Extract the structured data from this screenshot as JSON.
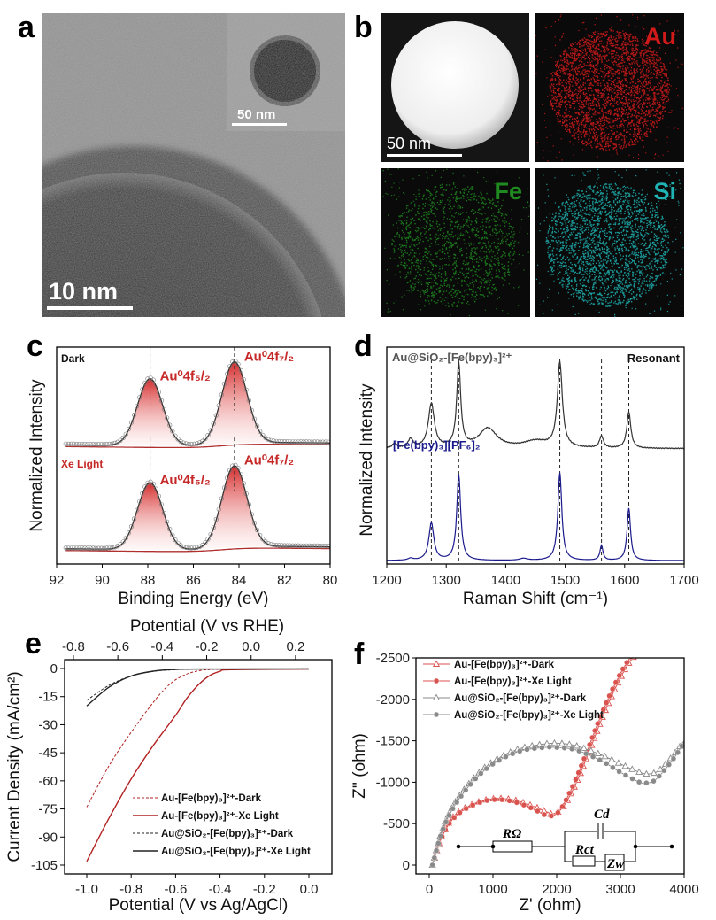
{
  "panels": {
    "a": {
      "label": "a",
      "scale_bar": "10 nm",
      "inset_scale_bar": "50 nm"
    },
    "b": {
      "label": "b",
      "scale_bar": "50 nm",
      "maps": [
        "Au",
        "Fe",
        "Si"
      ],
      "map_colors": [
        "#d21a1a",
        "#1f8a1f",
        "#1fb3b3"
      ]
    }
  },
  "chart_data": [
    {
      "panel": "c",
      "type": "line",
      "title": "",
      "xlabel": "Binding Energy (eV)",
      "ylabel": "Normalized Intensity",
      "xlim": [
        92,
        80
      ],
      "xticks": [
        "92",
        "90",
        "88",
        "86",
        "84",
        "82",
        "80"
      ],
      "series": [
        {
          "name": "Dark",
          "offset": 1.15,
          "peaks": [
            {
              "label": "Au⁰4f₇/₂",
              "center": 84.2,
              "height": 0.9
            },
            {
              "label": "Au⁰4f₅/₂",
              "center": 87.9,
              "height": 0.74
            }
          ]
        },
        {
          "name": "Xe Light",
          "offset": 0.0,
          "peaks": [
            {
              "label": "Au⁰4f₇/₂",
              "center": 84.2,
              "height": 0.9
            },
            {
              "label": "Au⁰4f₅/₂",
              "center": 87.9,
              "height": 0.74
            }
          ]
        }
      ],
      "colors": {
        "dark_label": "#111111",
        "light_label": "#c62828",
        "peak": "#c62828"
      }
    },
    {
      "panel": "d",
      "type": "line",
      "xlabel": "Raman Shift (cm⁻¹)",
      "ylabel": "Normalized Intensity",
      "xlim": [
        1200,
        1700
      ],
      "xticks": [
        "1200",
        "1300",
        "1400",
        "1500",
        "1600",
        "1700"
      ],
      "annotation": "Resonant",
      "marked_peaks": [
        1275,
        1321,
        1491,
        1561,
        1607
      ],
      "series": [
        {
          "name": "Au@SiO₂-[Fe(bpy)₃]²⁺",
          "color": "#333333",
          "offset": 1.17,
          "peaks": [
            [
              1213,
              0.05,
              4
            ],
            [
              1240,
              0.09,
              5
            ],
            [
              1275,
              0.45,
              6
            ],
            [
              1321,
              0.85,
              4
            ],
            [
              1370,
              0.2,
              18
            ],
            [
              1450,
              0.07,
              25
            ],
            [
              1491,
              0.86,
              5
            ],
            [
              1561,
              0.12,
              4
            ],
            [
              1607,
              0.37,
              4
            ]
          ]
        },
        {
          "name": "[Fe(bpy)₃][PF₆]₂",
          "color": "#1a1a8c",
          "offset": 0.035,
          "peaks": [
            [
              1240,
              0.02,
              5
            ],
            [
              1275,
              0.38,
              5
            ],
            [
              1321,
              0.87,
              4
            ],
            [
              1430,
              0.02,
              8
            ],
            [
              1491,
              0.89,
              4
            ],
            [
              1561,
              0.15,
              3
            ],
            [
              1607,
              0.53,
              3.5
            ]
          ]
        }
      ]
    },
    {
      "panel": "e",
      "type": "line",
      "xlabel": "Potential (V vs Ag/AgCl)",
      "x2label": "Potential (V vs RHE)",
      "ylabel": "Current Density (mA/cm²)",
      "xlim": [
        -1.1,
        0.1
      ],
      "ylim": [
        -110,
        5
      ],
      "xticks": [
        "-1.0",
        "-0.8",
        "-0.6",
        "-0.4",
        "-0.2",
        "0.0"
      ],
      "x2ticks": [
        "-0.8",
        "-0.6",
        "-0.4",
        "-0.2",
        "0.0",
        "0.2"
      ],
      "yticks": [
        "0",
        "-15",
        "-30",
        "-45",
        "-60",
        "-75",
        "-90",
        "-105"
      ],
      "series": [
        {
          "name": "Au-[Fe(bpy)₃]²⁺-Dark",
          "color": "#b22222",
          "dash": true,
          "x": [
            -1.0,
            -0.9,
            -0.8,
            -0.7,
            -0.65,
            -0.6,
            -0.55,
            -0.5,
            -0.45,
            -0.4,
            0
          ],
          "y": [
            -74,
            -52,
            -34,
            -18,
            -11,
            -6,
            -3,
            -1.3,
            -0.6,
            -0.4,
            -0.3
          ]
        },
        {
          "name": "Au-[Fe(bpy)₃]²⁺-Xe Light",
          "color": "#b22222",
          "dash": false,
          "x": [
            -1.0,
            -0.9,
            -0.8,
            -0.7,
            -0.6,
            -0.55,
            -0.5,
            -0.45,
            -0.4,
            -0.35,
            0
          ],
          "y": [
            -103,
            -80,
            -59,
            -41,
            -25,
            -16,
            -9,
            -4,
            -1.5,
            -0.6,
            -0.3
          ]
        },
        {
          "name": "Au@SiO₂-[Fe(bpy)₃]²⁺-Dark",
          "color": "#222222",
          "dash": true,
          "x": [
            -1.0,
            -0.9,
            -0.8,
            -0.7,
            -0.6,
            -0.5,
            0
          ],
          "y": [
            -17,
            -9,
            -4,
            -1.5,
            -0.6,
            -0.3,
            -0.2
          ]
        },
        {
          "name": "Au@SiO₂-[Fe(bpy)₃]²⁺-Xe Light",
          "color": "#222222",
          "dash": false,
          "x": [
            -1.0,
            -0.9,
            -0.8,
            -0.7,
            -0.6,
            -0.5,
            0
          ],
          "y": [
            -20,
            -10,
            -4,
            -1.4,
            -0.5,
            -0.3,
            -0.2
          ]
        }
      ]
    },
    {
      "panel": "f",
      "type": "scatter",
      "xlabel": "Z' (ohm)",
      "ylabel": "Z'' (ohm)",
      "xlim": [
        -150,
        4000
      ],
      "ylim": [
        100,
        -2500
      ],
      "xticks": [
        "0",
        "1000",
        "2000",
        "3000",
        "4000"
      ],
      "yticks": [
        "-2500",
        "-2000",
        "-1500",
        "-1000",
        "-500",
        "0"
      ],
      "circuit": {
        "r_ohm": "RΩ",
        "r_ct": "Rct",
        "c_d": "Cd",
        "z_w": "Zw"
      },
      "series": [
        {
          "name": "Au-[Fe(bpy)₃]²⁺-Dark",
          "color": "#d9534f",
          "marker": "triangle",
          "x": [
            50,
            200,
            400,
            700,
            1000,
            1300,
            1600,
            1850,
            1950,
            2100,
            2300,
            2500,
            2700,
            2900,
            3100,
            3250
          ],
          "y": [
            0,
            -350,
            -600,
            -740,
            -800,
            -790,
            -720,
            -640,
            -620,
            -700,
            -980,
            -1350,
            -1750,
            -2100,
            -2400,
            -2550
          ]
        },
        {
          "name": "Au-[Fe(bpy)₃]²⁺-Xe Light",
          "color": "#d9534f",
          "marker": "circle",
          "x": [
            50,
            200,
            400,
            700,
            1000,
            1300,
            1600,
            1800,
            1900,
            2050,
            2250,
            2450,
            2650,
            2850,
            3050,
            3200
          ],
          "y": [
            0,
            -340,
            -580,
            -730,
            -790,
            -770,
            -690,
            -610,
            -590,
            -660,
            -950,
            -1320,
            -1720,
            -2080,
            -2380,
            -2550
          ]
        },
        {
          "name": "Au@SiO₂-[Fe(bpy)₃]²⁺-Dark",
          "color": "#8a8a8a",
          "marker": "triangle",
          "x": [
            50,
            200,
            400,
            700,
            1000,
            1400,
            1800,
            2000,
            2300,
            2700,
            3000,
            3300,
            3450,
            3600,
            3800,
            4000
          ],
          "y": [
            0,
            -420,
            -750,
            -1050,
            -1250,
            -1400,
            -1460,
            -1470,
            -1440,
            -1330,
            -1220,
            -1120,
            -1100,
            -1140,
            -1300,
            -1500
          ]
        },
        {
          "name": "Au@SiO₂-[Fe(bpy)₃]²⁺-Xe Light",
          "color": "#8a8a8a",
          "marker": "circle",
          "x": [
            50,
            200,
            400,
            700,
            1000,
            1400,
            1800,
            2000,
            2300,
            2700,
            3000,
            3300,
            3400,
            3550,
            3800,
            4000
          ],
          "y": [
            0,
            -400,
            -720,
            -1020,
            -1220,
            -1370,
            -1420,
            -1420,
            -1390,
            -1260,
            -1120,
            -1000,
            -990,
            -1030,
            -1250,
            -1480
          ]
        }
      ]
    }
  ]
}
